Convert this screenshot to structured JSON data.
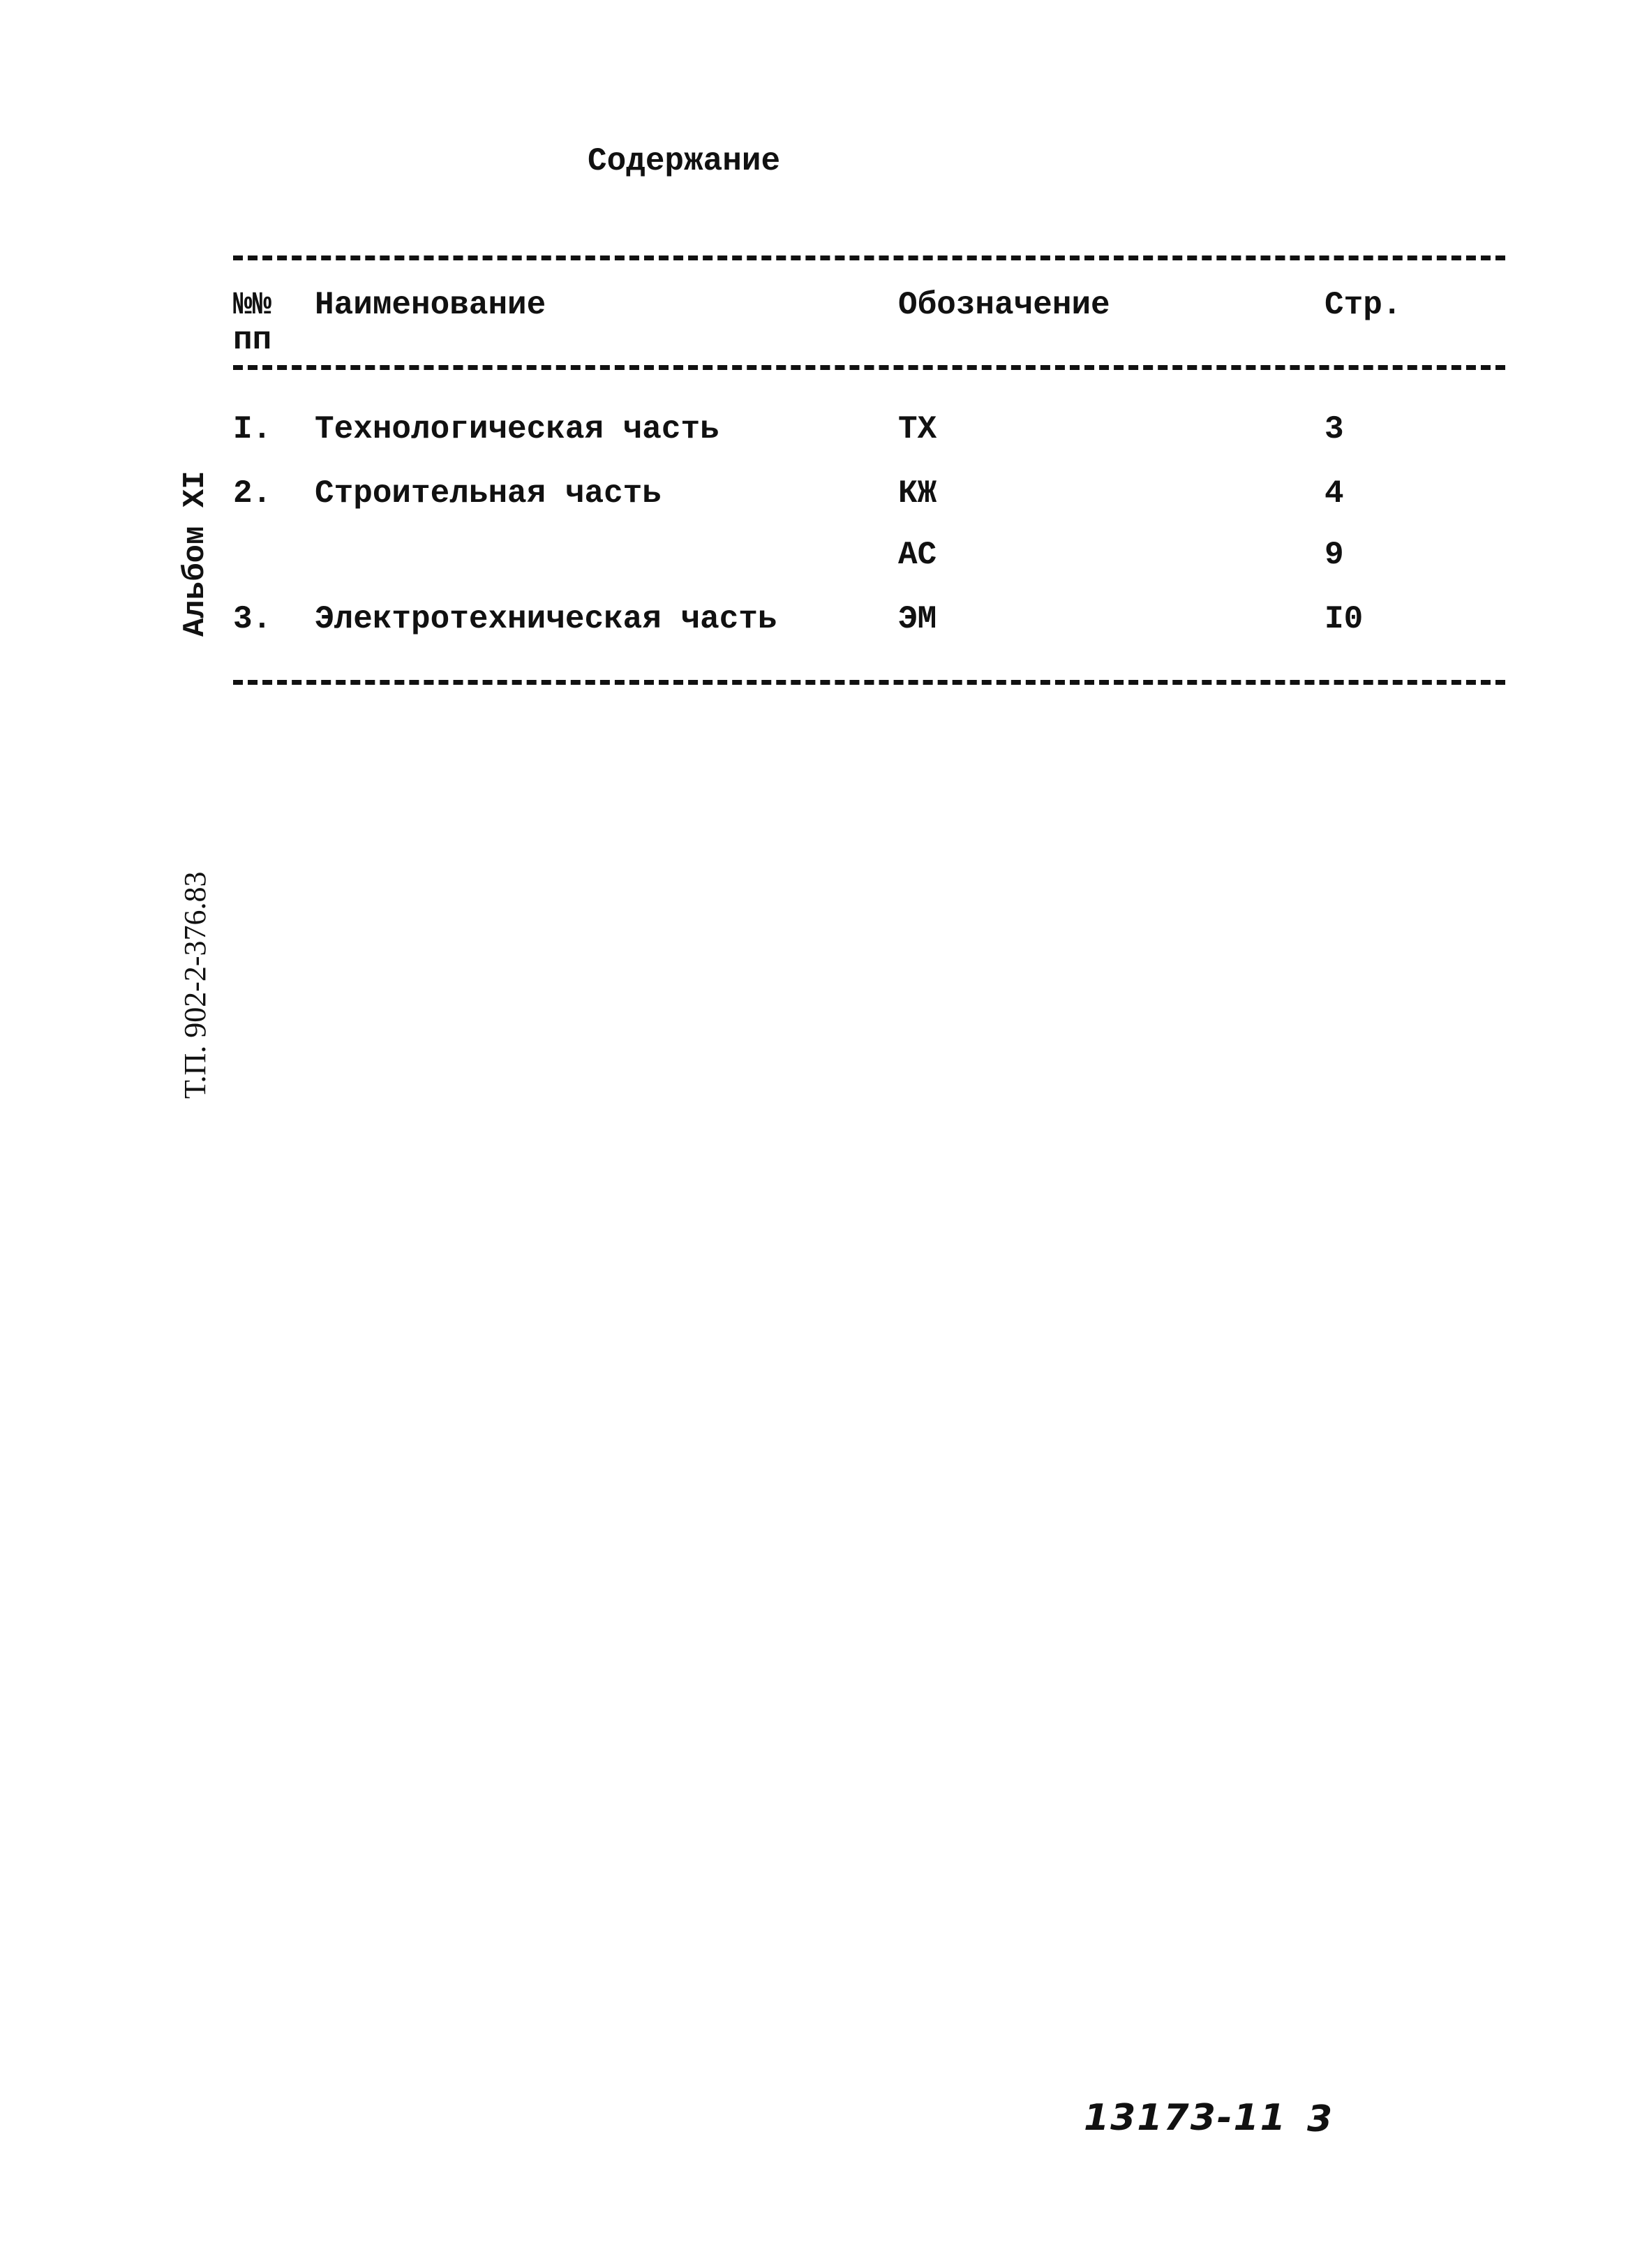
{
  "title": "Содержание",
  "table": {
    "headers": {
      "number": "№№",
      "number_sub": "пп",
      "name": "Наименование",
      "designation": "Обозначение",
      "page": "Стр."
    },
    "rows": [
      {
        "number": "I.",
        "name": "Технологическая часть",
        "designation": "ТХ",
        "page": "3"
      },
      {
        "number": "2.",
        "name": "Строительная часть",
        "designation": "КЖ",
        "page": "4"
      },
      {
        "number": "",
        "name": "",
        "designation": "АС",
        "page": "9"
      },
      {
        "number": "3.",
        "name": "Электротехническая часть",
        "designation": "ЭМ",
        "page": "I0"
      }
    ]
  },
  "margin": {
    "album": "Альбом XI",
    "project_code": "Т.П. 902-2-376.83"
  },
  "footer": {
    "handwritten_code": "13173-11",
    "handwritten_page": "3"
  }
}
